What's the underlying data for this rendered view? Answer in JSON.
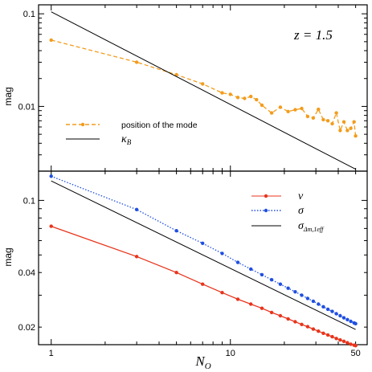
{
  "chart_data": [
    {
      "type": "line",
      "panel": "top",
      "ylabel": "mag",
      "xlabel": "",
      "xscale": "log",
      "yscale": "log",
      "xlim": [
        0.85,
        58
      ],
      "ylim": [
        0.002,
        0.125
      ],
      "yticks": [
        {
          "v": 0.1,
          "label": "0.1"
        },
        {
          "v": 0.01,
          "label": "0.01"
        }
      ],
      "annotation": "z = 1.5",
      "legend_position": "bottom-left",
      "series": [
        {
          "name": "position of the mode",
          "color": "#f29c1c",
          "style": "dashed",
          "marker": "dot",
          "x": [
            1,
            3,
            5,
            7,
            9,
            10,
            11,
            12,
            13,
            14,
            15,
            17,
            19,
            21,
            23,
            25,
            27,
            29,
            31,
            33,
            35,
            37,
            39,
            41,
            43,
            45,
            47,
            49,
            50
          ],
          "y": [
            0.052,
            0.03,
            0.022,
            0.0175,
            0.014,
            0.0135,
            0.0125,
            0.0122,
            0.0128,
            0.0118,
            0.0103,
            0.0085,
            0.0098,
            0.0088,
            0.0092,
            0.0095,
            0.0078,
            0.0075,
            0.0093,
            0.0072,
            0.007,
            0.0065,
            0.0085,
            0.0055,
            0.0068,
            0.0055,
            0.0058,
            0.0068,
            0.0048
          ]
        },
        {
          "name": "κ_B",
          "color": "#000000",
          "style": "solid",
          "marker": "none",
          "x": [
            1,
            50
          ],
          "y": [
            0.105,
            0.0021
          ]
        }
      ]
    },
    {
      "type": "line",
      "panel": "bottom",
      "ylabel": "mag",
      "xlabel": "N_O",
      "xscale": "log",
      "yscale": "log",
      "xlim": [
        0.85,
        58
      ],
      "ylim": [
        0.016,
        0.145
      ],
      "yticks": [
        {
          "v": 0.1,
          "label": "0.1"
        },
        {
          "v": 0.04,
          "label": "0.04"
        },
        {
          "v": 0.02,
          "label": "0.02"
        }
      ],
      "xticks": [
        {
          "v": 1,
          "label": "1"
        },
        {
          "v": 10,
          "label": "10"
        },
        {
          "v": 50,
          "label": "50"
        }
      ],
      "legend_position": "top-right",
      "series": [
        {
          "name": "v",
          "color": "#e8341c",
          "style": "solid",
          "marker": "dot",
          "x": [
            1,
            3,
            5,
            7,
            9,
            11,
            13,
            15,
            17,
            19,
            21,
            23,
            25,
            27,
            29,
            31,
            33,
            35,
            37,
            39,
            41,
            43,
            45,
            47,
            49,
            50
          ],
          "y": [
            0.072,
            0.049,
            0.04,
            0.0345,
            0.031,
            0.0285,
            0.0268,
            0.0254,
            0.0241,
            0.0231,
            0.0222,
            0.0214,
            0.0207,
            0.0201,
            0.0195,
            0.019,
            0.0185,
            0.0181,
            0.0177,
            0.0173,
            0.017,
            0.0167,
            0.0164,
            0.0161,
            0.0159,
            0.0158
          ]
        },
        {
          "name": "σ",
          "color": "#1f4fe0",
          "style": "dotted",
          "marker": "dot",
          "x": [
            1,
            3,
            5,
            7,
            9,
            11,
            13,
            15,
            17,
            19,
            21,
            23,
            25,
            27,
            29,
            31,
            33,
            35,
            37,
            39,
            41,
            43,
            45,
            47,
            49,
            50
          ],
          "y": [
            0.136,
            0.089,
            0.068,
            0.058,
            0.051,
            0.0455,
            0.0418,
            0.0389,
            0.0365,
            0.0345,
            0.0328,
            0.0313,
            0.03,
            0.0288,
            0.0278,
            0.0268,
            0.0259,
            0.0251,
            0.0244,
            0.0237,
            0.0231,
            0.0225,
            0.022,
            0.0215,
            0.0211,
            0.0209
          ]
        },
        {
          "name": "σ_Δm,1eff",
          "color": "#000000",
          "style": "solid",
          "marker": "none",
          "x": [
            1,
            50
          ],
          "y": [
            0.128,
            0.0194
          ]
        }
      ]
    }
  ],
  "legend_labels": {
    "mode": "position of the mode",
    "kappa_base": "κ",
    "kappa_sub": "B",
    "v": "v",
    "sigma": "σ",
    "sigma_eff_base": "σ",
    "sigma_eff_sub": "Δm,1eff"
  },
  "annotation_text": "z = 1.5",
  "axis_label_x_base": "N",
  "axis_label_x_sub": "O",
  "axis_label_y_top": "mag",
  "axis_label_y_bottom": "mag"
}
